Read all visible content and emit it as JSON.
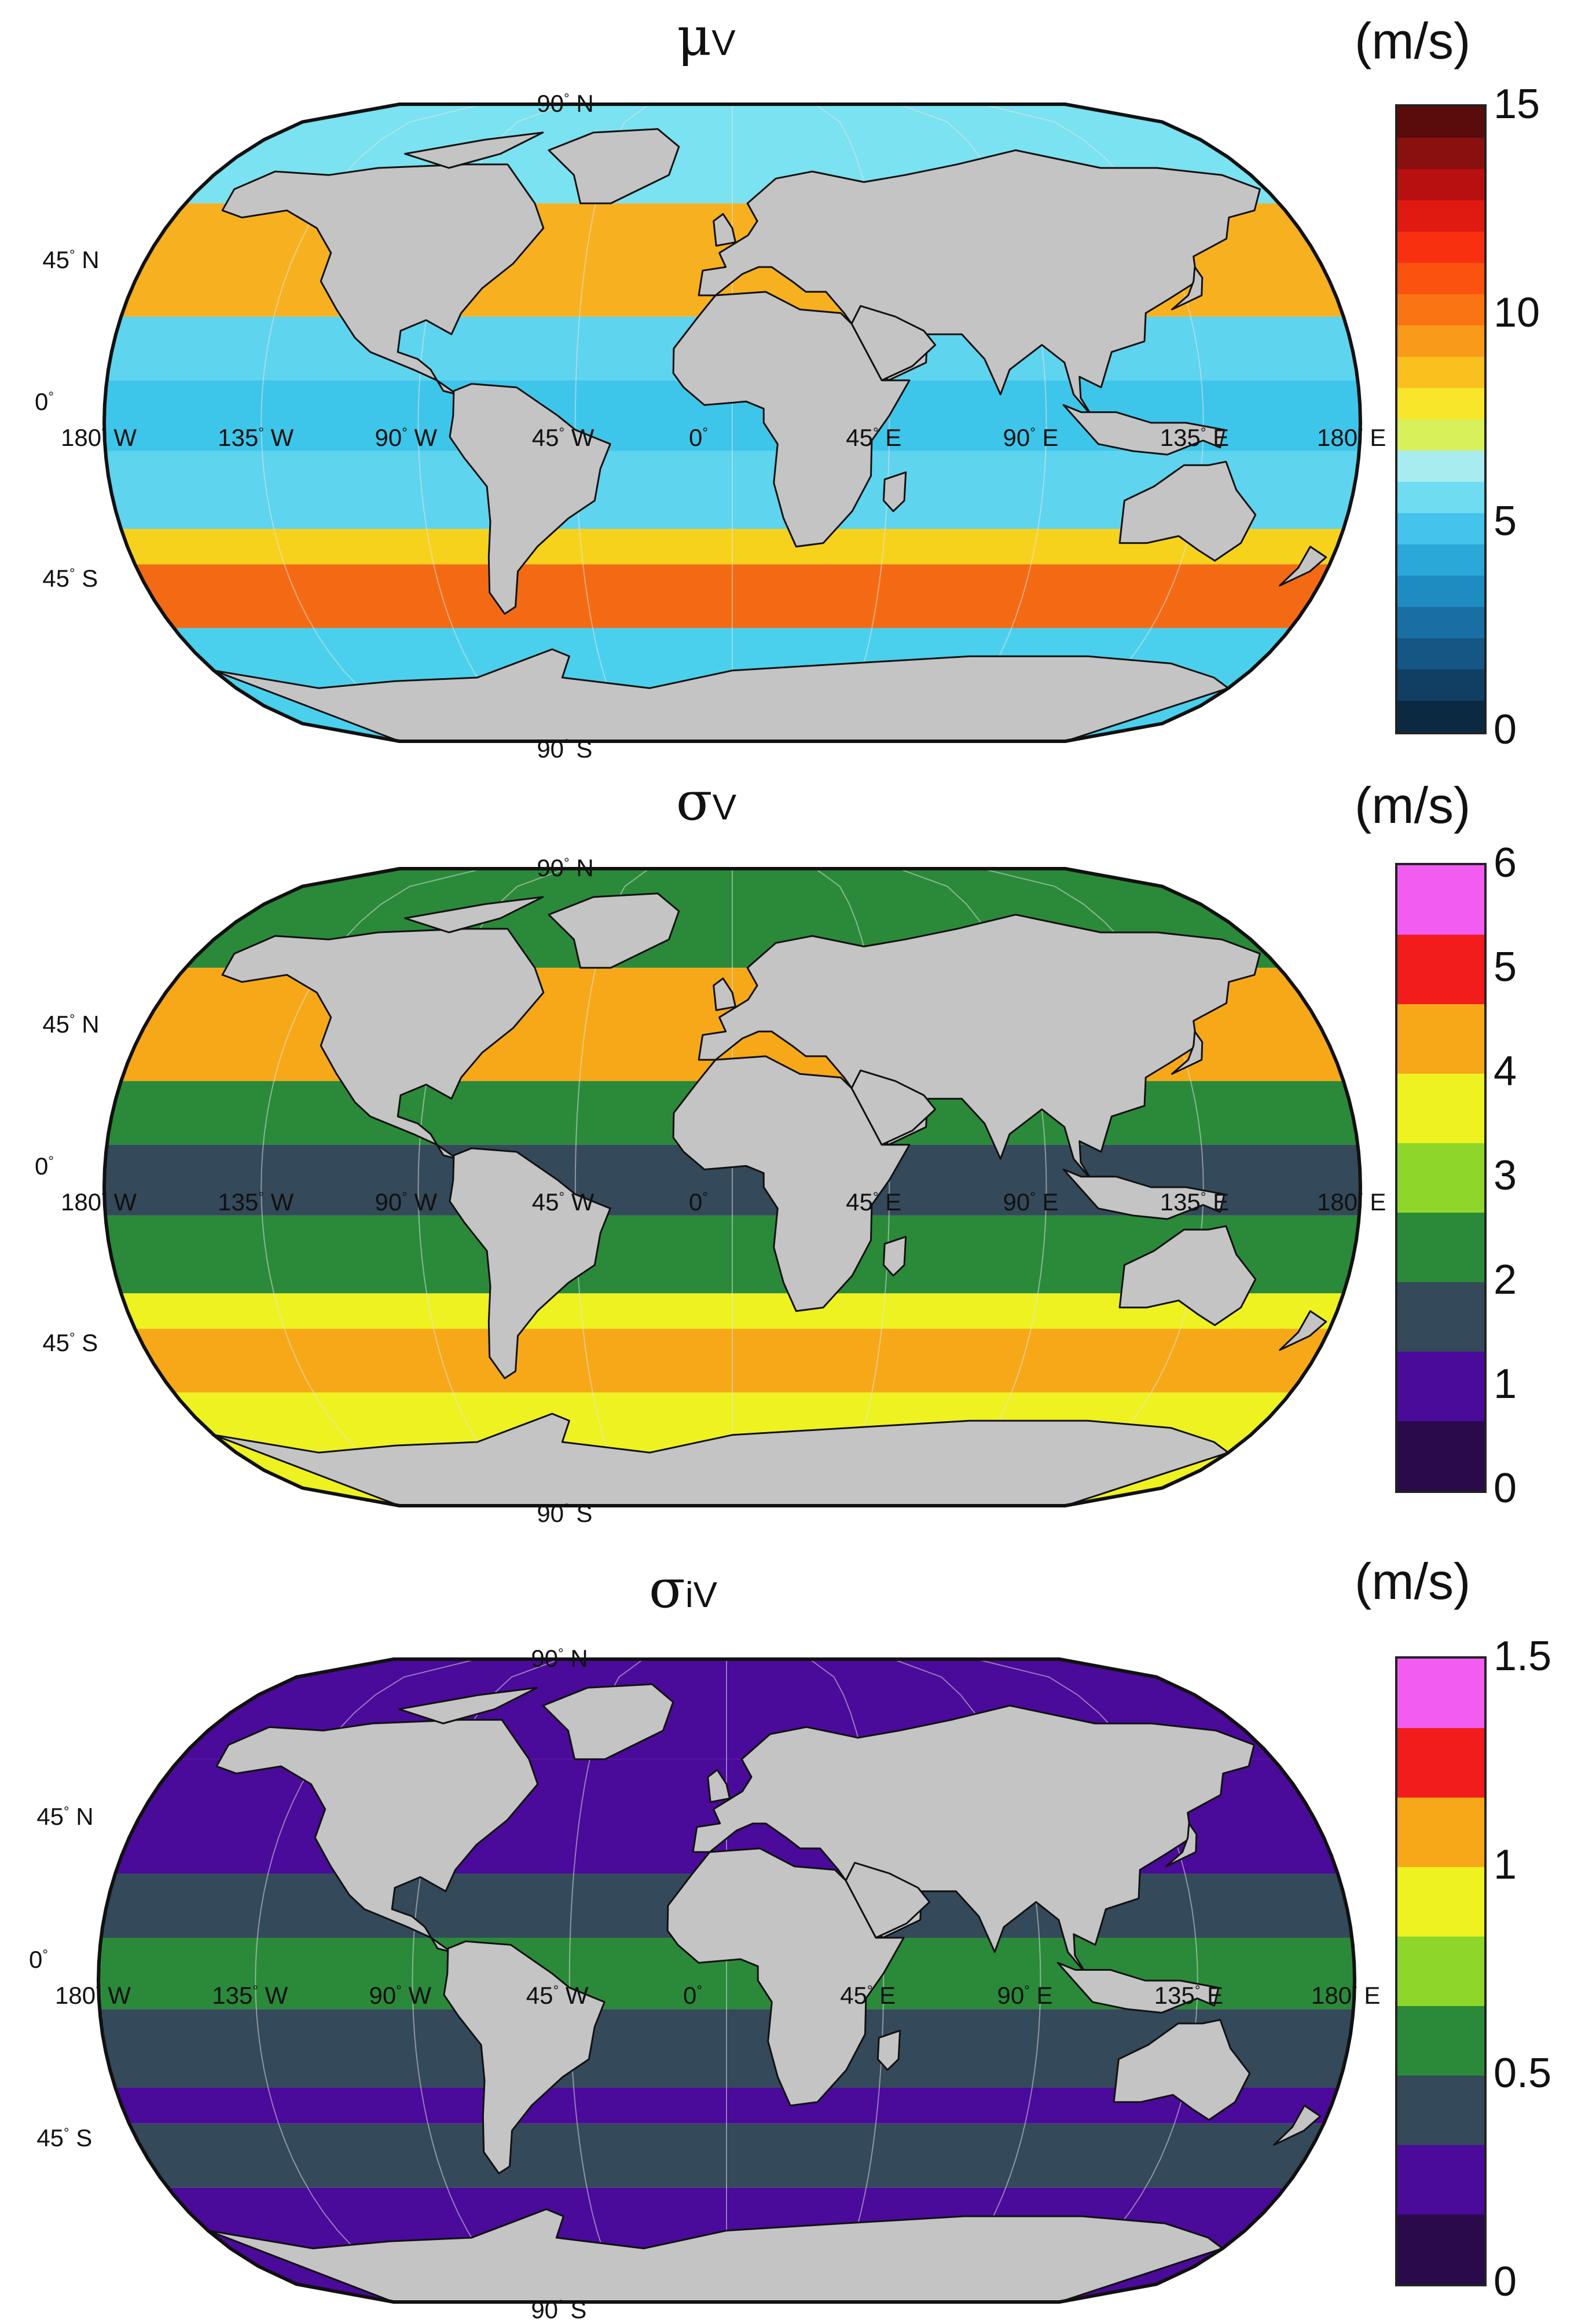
{
  "panels": [
    {
      "title_main": "μ",
      "title_sub": "V",
      "unit": "(m/s)",
      "colorbar": {
        "ticks": [
          "15",
          "10",
          "5",
          "0"
        ],
        "colors": [
          "#5a0b0b",
          "#8a1010",
          "#b81010",
          "#e01a10",
          "#f83010",
          "#fb5210",
          "#fb7414",
          "#f99a1a",
          "#f9c01e",
          "#f7e62a",
          "#d8f05a",
          "#a8ecf0",
          "#6fdcf2",
          "#44c4ec",
          "#2aa8d8",
          "#1e8cc0",
          "#196fa3",
          "#155684",
          "#103f63",
          "#0b2a42"
        ]
      },
      "ocean_colors": {
        "polar": "#7ae2f0",
        "mid": "#f7b020",
        "trade": "#5ed4ee",
        "equator": "#3ec6ea",
        "south": "#f7d21c",
        "southern_max": "#f46a14",
        "antarctic": "#4ad0ec"
      }
    },
    {
      "title_main": "σ",
      "title_sub": "V",
      "unit": "(m/s)",
      "colorbar": {
        "ticks": [
          "6",
          "5",
          "4",
          "3",
          "2",
          "1",
          "0"
        ],
        "colors": [
          "#f25cf0",
          "#f21c1c",
          "#f7a818",
          "#eef220",
          "#8ed62a",
          "#2a8a3a",
          "#34495a",
          "#4a0a9a",
          "#2a0a4a"
        ]
      },
      "ocean_colors": {
        "polar": "#2a8a3a",
        "mid": "#f7a818",
        "trade": "#2a8a3a",
        "equator": "#34495a",
        "south": "#eef220",
        "southern_max": "#f7a818",
        "antarctic": "#eef220"
      }
    },
    {
      "title_main": "σ",
      "title_sub": "iV",
      "unit": "(m/s)",
      "colorbar": {
        "ticks": [
          "1.5",
          "1",
          "0.5",
          "0"
        ],
        "colors": [
          "#f25cf0",
          "#f21c1c",
          "#f7a818",
          "#eef220",
          "#8ed62a",
          "#2a8a3a",
          "#34495a",
          "#4a0a9a",
          "#2a0a4a"
        ]
      },
      "ocean_colors": {
        "polar": "#4a0a9a",
        "mid": "#4a0a9a",
        "trade": "#34495a",
        "equator": "#2a8a3a",
        "south": "#4a0a9a",
        "southern_max": "#34495a",
        "antarctic": "#4a0a9a"
      }
    }
  ],
  "lat_labels": {
    "n90": "90",
    "n45": "45",
    "eq": "0",
    "s45": "45",
    "s90": "90",
    "n": "N",
    "s": "S"
  },
  "lon_labels": [
    {
      "v": "180",
      "h": "W"
    },
    {
      "v": "135",
      "h": "W"
    },
    {
      "v": "90",
      "h": "W"
    },
    {
      "v": "45",
      "h": "W"
    },
    {
      "v": "0",
      "h": ""
    },
    {
      "v": "45",
      "h": "E"
    },
    {
      "v": "90",
      "h": "E"
    },
    {
      "v": "135",
      "h": "E"
    },
    {
      "v": "180",
      "h": "E"
    }
  ],
  "degree_symbol": "°",
  "land_color": "#c4c4c4"
}
